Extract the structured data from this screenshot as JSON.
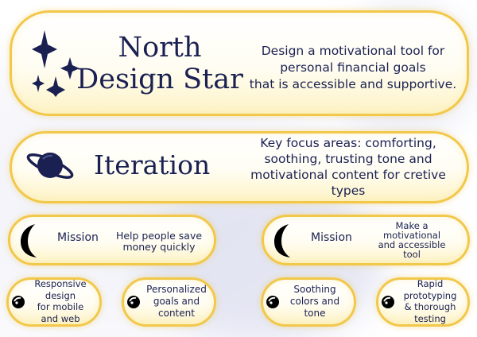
{
  "north_star": {
    "title_line1": "North",
    "title_line2": "Design Star",
    "desc_line1": "Design a motivational tool for",
    "desc_line2": "personal financial goals",
    "desc_line3": "that is accessible and supportive.",
    "icon": "stars-icon"
  },
  "iteration": {
    "title": "Iteration",
    "desc_line1": "Key focus areas: comforting,",
    "desc_line2": "soothing, trusting tone and",
    "desc_line3": "motivational content for cretive",
    "desc_line4": "types",
    "icon": "planet-icon"
  },
  "missions": [
    {
      "label": "Mission",
      "text_line1": "Help people save",
      "text_line2": "money quickly",
      "icon": "crescent-moon-icon"
    },
    {
      "label": "Mission",
      "text_line1": "Make a",
      "text_line2": "motivational",
      "text_line3": "and accessible",
      "text_line4": "tool",
      "icon": "crescent-moon-icon"
    }
  ],
  "features": [
    {
      "lines": [
        "Responsive",
        "design",
        "for mobile",
        "and web"
      ],
      "icon": "comet-icon"
    },
    {
      "lines": [
        "Personalized",
        "goals and",
        "content"
      ],
      "icon": "comet-icon"
    },
    {
      "lines": [
        "Soothing",
        "colors and",
        "tone"
      ],
      "icon": "comet-icon"
    },
    {
      "lines": [
        "Rapid",
        "prototyping",
        "& thorough",
        "testing"
      ],
      "icon": "comet-icon"
    }
  ],
  "colors": {
    "navy": "#1a2152",
    "gold_border": "#f2c84b",
    "pill_fill": "#fffdf2",
    "glow": "#fdf3c6"
  }
}
